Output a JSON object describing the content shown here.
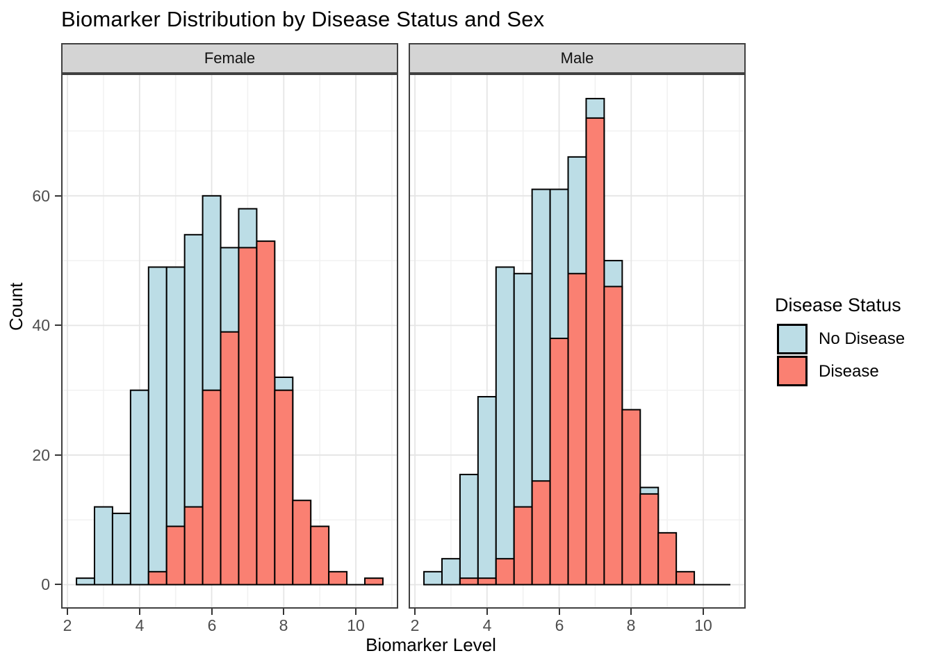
{
  "title": "Biomarker Distribution by Disease Status and Sex",
  "facet_labels": [
    "Female",
    "Male"
  ],
  "axes": {
    "x_label": "Biomarker Level",
    "y_label": "Count",
    "x_ticks": [
      2,
      4,
      6,
      8,
      10
    ],
    "y_ticks": [
      0,
      20,
      40,
      60
    ]
  },
  "legend": {
    "title": "Disease Status",
    "items": [
      {
        "label": "No Disease",
        "color": "#BCDDE6"
      },
      {
        "label": "Disease",
        "color": "#FA8072"
      }
    ]
  },
  "colors": {
    "no_disease_fill": "#BCDDE6",
    "disease_fill": "#FA8072",
    "bar_stroke": "#000000",
    "panel_border": "#404040",
    "strip_fill": "#D4D4D4",
    "grid_major": "#E5E5E5",
    "grid_minor": "#F1F1F1",
    "tick_text": "#4D4D4D"
  },
  "chart_data": {
    "type": "bar",
    "subtype": "overlaid-histogram, faceted by Sex",
    "title": "Biomarker Distribution by Disease Status and Sex",
    "xlabel": "Biomarker Level",
    "ylabel": "Count",
    "legend_position": "right",
    "grid": {
      "major_x": [
        2,
        4,
        6,
        8,
        10
      ],
      "minor_x": [
        3,
        5,
        7,
        9,
        11
      ],
      "major_y": [
        0,
        20,
        40,
        60
      ],
      "minor_y": [
        10,
        30,
        50,
        70
      ]
    },
    "bin_width": 0.5,
    "bin_starts": [
      2.25,
      2.75,
      3.25,
      3.75,
      4.25,
      4.75,
      5.25,
      5.75,
      6.25,
      6.75,
      7.25,
      7.75,
      8.25,
      8.75,
      9.25,
      9.75,
      10.25
    ],
    "x_domain": [
      1.825,
      11.175
    ],
    "y_domain": [
      -3.7,
      78.85
    ],
    "baseline_extent": [
      2.25,
      10.75
    ],
    "note": "Overlapping histograms (position=identity); null = bar not visible (absent or hidden behind front series)",
    "facets": [
      {
        "name": "Female",
        "series": [
          {
            "name": "No Disease",
            "values": [
              1,
              12,
              11,
              30,
              49,
              49,
              54,
              60,
              52,
              58,
              null,
              32,
              null,
              null,
              null,
              null,
              null
            ]
          },
          {
            "name": "Disease",
            "values": [
              null,
              null,
              null,
              null,
              2,
              9,
              12,
              30,
              39,
              52,
              53,
              30,
              13,
              9,
              2,
              0,
              1
            ]
          }
        ]
      },
      {
        "name": "Male",
        "series": [
          {
            "name": "No Disease",
            "values": [
              2,
              4,
              17,
              29,
              49,
              48,
              61,
              61,
              66,
              75,
              50,
              null,
              15,
              null,
              null,
              null,
              null
            ]
          },
          {
            "name": "Disease",
            "values": [
              null,
              null,
              1,
              1,
              4,
              12,
              16,
              38,
              48,
              72,
              46,
              27,
              14,
              8,
              2,
              null,
              null
            ]
          }
        ]
      }
    ]
  }
}
